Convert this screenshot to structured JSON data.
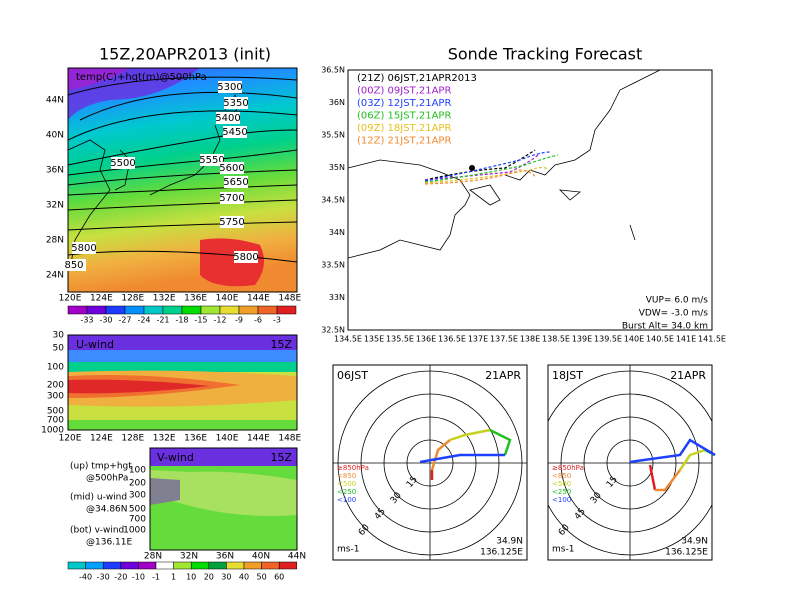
{
  "left_map": {
    "title": "15Z,20APR2013 (init)",
    "field_label": "temp(C)+hgt(m)@500hPa",
    "lat_labels": [
      "44N",
      "40N",
      "36N",
      "32N",
      "28N",
      "24N"
    ],
    "lon_labels": [
      "120E",
      "124E",
      "128E",
      "132E",
      "136E",
      "140E",
      "144E",
      "148E"
    ],
    "contour_labels": [
      "5300",
      "5350",
      "5400",
      "5450",
      "5500",
      "5550",
      "5600",
      "5650",
      "5700",
      "5750",
      "5800",
      "5800",
      "850"
    ],
    "colorbar_labels": [
      "-33",
      "-30",
      "-27",
      "-24",
      "-21",
      "-18",
      "-15",
      "-12",
      "-9",
      "-6",
      "-3"
    ]
  },
  "u_wind": {
    "label": "U-wind",
    "time": "15Z",
    "pressure_labels": [
      "30",
      "50",
      "100",
      "200",
      "300",
      "500",
      "700",
      "1000"
    ],
    "lon_labels": [
      "120E",
      "124E",
      "128E",
      "132E",
      "136E",
      "140E",
      "144E",
      "148E"
    ]
  },
  "v_wind": {
    "label": "V-wind",
    "time": "15Z",
    "pressure_labels": [
      "100",
      "200",
      "300",
      "500",
      "700",
      "1000"
    ],
    "lat_labels": [
      "28N",
      "32N",
      "36N",
      "40N",
      "44N"
    ],
    "colorbar_labels": [
      "-40",
      "-30",
      "-20",
      "-10",
      "-1",
      "1",
      "10",
      "20",
      "30",
      "40",
      "50",
      "60"
    ]
  },
  "notes": [
    "(up) tmp+hgt",
    "@500hPa",
    "(mid) u-wind",
    "@34.86N",
    "(bot) v-wind",
    "@136.11E"
  ],
  "tracking": {
    "title": "Sonde Tracking Forecast",
    "legend": [
      "(21Z) 06JST,21APR2013",
      "(00Z) 09JST,21APR",
      "(03Z) 12JST,21APR",
      "(06Z) 15JST,21APR",
      "(09Z) 18JST,21APR",
      "(12Z) 21JST,21APR"
    ],
    "lat_labels": [
      "36.5N",
      "36N",
      "35.5N",
      "35N",
      "34.5N",
      "34N",
      "33.5N",
      "33N",
      "32.5N"
    ],
    "lon_labels": [
      "134.5E",
      "135E",
      "135.5E",
      "136E",
      "136.5E",
      "137E",
      "137.5E",
      "138E",
      "138.5E",
      "139E",
      "139.5E",
      "140E",
      "140.5E",
      "141E",
      "141.5E"
    ],
    "params": [
      "VUP= 6.0 m/s",
      "VDW= -3.0 m/s",
      "Burst Alt= 34.0 km"
    ]
  },
  "hodographs": [
    {
      "time": "06JST",
      "date": "21APR",
      "ring_labels": [
        "15",
        "30",
        "45",
        "60"
      ],
      "level_labels": [
        "≥850hPa",
        "<850",
        "<500",
        "<250",
        "<100"
      ],
      "unit": "ms-1",
      "lat": "34.9N",
      "lon": "136.125E"
    },
    {
      "time": "18JST",
      "date": "21APR",
      "ring_labels": [
        "15",
        "30",
        "45",
        "60"
      ],
      "level_labels": [
        "≥850hPa",
        "<850",
        "<500",
        "<250",
        "<100"
      ],
      "unit": "ms-1",
      "lat": "34.9N",
      "lon": "136.125E"
    }
  ]
}
